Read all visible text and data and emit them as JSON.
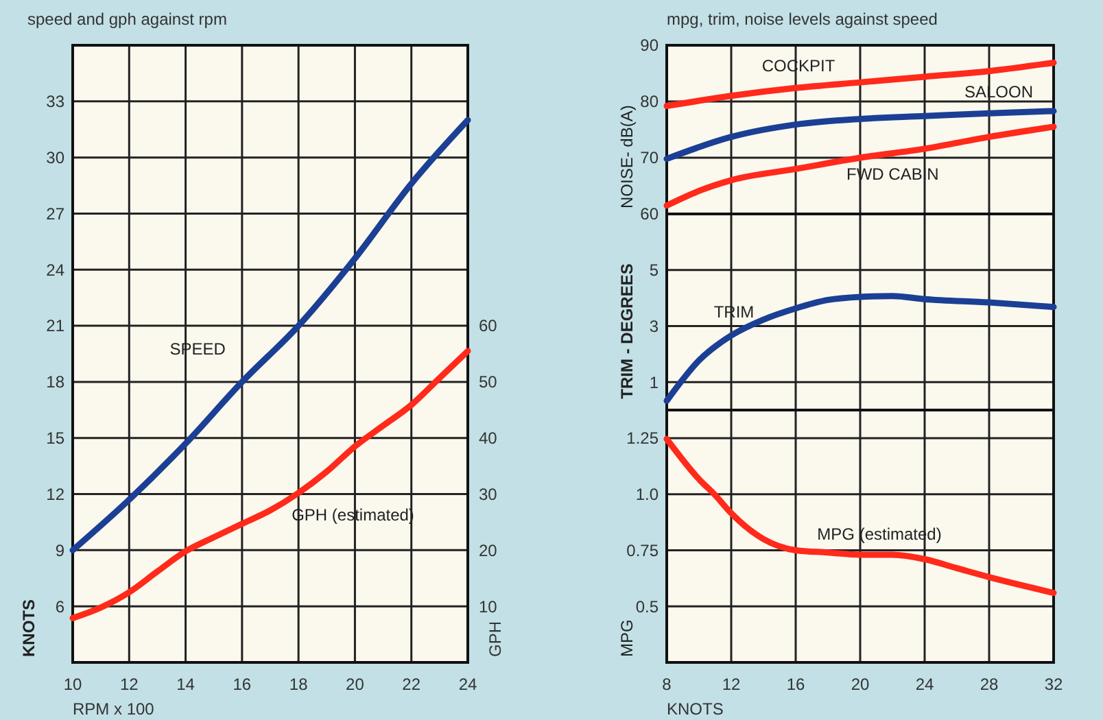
{
  "chart_data": [
    {
      "type": "line",
      "title": "speed and gph against rpm",
      "xlabel": "RPM x 100",
      "ylabel": "KNOTS",
      "y2label": "GPH",
      "xlim": [
        10,
        24
      ],
      "xticks": [
        10,
        12,
        14,
        16,
        18,
        20,
        22,
        24
      ],
      "ylim": [
        3,
        36
      ],
      "yticks": [
        6,
        9,
        12,
        15,
        18,
        21,
        24,
        27,
        30,
        33
      ],
      "y2lim": [
        0,
        110
      ],
      "y2ticks": [
        10,
        20,
        30,
        40,
        50,
        60
      ],
      "grid": true,
      "series": [
        {
          "name": "SPEED",
          "color": "#1b3f94",
          "x": [
            10,
            12,
            14,
            16,
            18,
            20,
            22,
            24
          ],
          "values": [
            9,
            11.7,
            14.7,
            18,
            21,
            24.6,
            28.6,
            32
          ]
        },
        {
          "name": "GPH (estimated)",
          "color": "#ff2a1a",
          "axis": "y2",
          "x": [
            10,
            11,
            12,
            13,
            14,
            15,
            16,
            17,
            18,
            19,
            20,
            21,
            22,
            23,
            24
          ],
          "values": [
            7.9,
            9.8,
            12.5,
            16.2,
            19.8,
            22.3,
            24.7,
            27.1,
            30.2,
            34,
            38.5,
            42.2,
            45.9,
            50.7,
            55.5
          ]
        }
      ]
    },
    {
      "type": "line",
      "title": "mpg, trim, noise levels against speed",
      "ylabel": "NOISE- dB(A)",
      "xlim": [
        8,
        32
      ],
      "xticks": [
        8,
        12,
        16,
        20,
        24,
        28,
        32
      ],
      "ylim": [
        60,
        90
      ],
      "yticks": [
        60,
        70,
        80,
        90
      ],
      "grid": true,
      "tick_labels": "y",
      "series": [
        {
          "name": "COCKPIT",
          "color": "#ff2a1a",
          "x": [
            8,
            12,
            16,
            20,
            24,
            28,
            32
          ],
          "values": [
            79.2,
            81,
            82.4,
            83.4,
            84.4,
            85.4,
            86.9
          ]
        },
        {
          "name": "SALOON",
          "color": "#1b3f94",
          "x": [
            8,
            12,
            16,
            20,
            24,
            28,
            32
          ],
          "values": [
            69.8,
            73.7,
            75.9,
            76.9,
            77.4,
            77.9,
            78.3
          ]
        },
        {
          "name": "FWD CABIN",
          "color": "#ff2a1a",
          "x": [
            8,
            10,
            12,
            16,
            20,
            24,
            28,
            32
          ],
          "values": [
            61.5,
            64.1,
            66,
            68,
            70,
            71.6,
            73.7,
            75.5
          ]
        }
      ]
    },
    {
      "type": "line",
      "ylabel": "TRIM - DEGREES",
      "xlim": [
        8,
        32
      ],
      "xticks": [
        8,
        12,
        16,
        20,
        24,
        28,
        32
      ],
      "ylim": [
        0,
        7
      ],
      "yticks": [
        1,
        3,
        5
      ],
      "grid": true,
      "tick_labels": "y",
      "series": [
        {
          "name": "TRIM",
          "color": "#1b3f94",
          "x": [
            8,
            10,
            12,
            14,
            16,
            18,
            20,
            22,
            24,
            28,
            32
          ],
          "values": [
            0.33,
            1.77,
            2.66,
            3.23,
            3.63,
            3.93,
            4.04,
            4.07,
            3.96,
            3.84,
            3.68
          ]
        }
      ]
    },
    {
      "type": "line",
      "xlabel": "KNOTS",
      "ylabel": "MPG",
      "xlim": [
        8,
        32
      ],
      "xticks": [
        8,
        12,
        16,
        20,
        24,
        28,
        32
      ],
      "ylim": [
        0.25,
        1.375
      ],
      "yticks": [
        {
          "value": 0.5,
          "label": "0.5"
        },
        0.75,
        {
          "value": 1,
          "label": "1.0"
        },
        1.25
      ],
      "grid": true,
      "series": [
        {
          "name": "MPG (estimated)",
          "color": "#ff2a1a",
          "x": [
            8,
            10,
            11,
            12,
            14,
            16,
            18,
            20,
            22,
            24,
            26,
            28,
            32
          ],
          "values": [
            1.246,
            1.067,
            0.996,
            0.915,
            0.8,
            0.75,
            0.74,
            0.73,
            0.73,
            0.71,
            0.67,
            0.63,
            0.56
          ]
        }
      ]
    }
  ]
}
